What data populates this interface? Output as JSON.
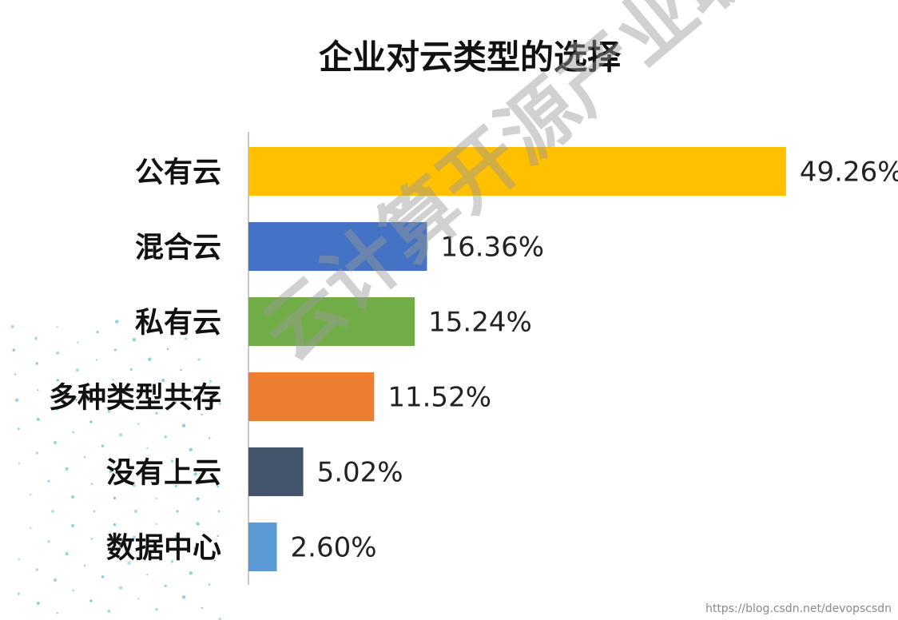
{
  "chart_data": {
    "type": "bar",
    "orientation": "horizontal",
    "title": "企业对云类型的选择",
    "xlabel": "",
    "ylabel": "",
    "xlim": [
      0,
      55
    ],
    "grid": false,
    "legend": "none",
    "categories": [
      "公有云",
      "混合云",
      "私有云",
      "多种类型共存",
      "没有上云",
      "数据中心"
    ],
    "values": [
      49.26,
      16.36,
      15.24,
      11.52,
      5.02,
      2.6
    ],
    "value_labels": [
      "49.26%",
      "16.36%",
      "15.24%",
      "11.52%",
      "5.02%",
      "2.60%"
    ],
    "colors": [
      "#FFC000",
      "#4472C4",
      "#70AD47",
      "#ED7D31",
      "#44546A",
      "#5B9BD5"
    ]
  },
  "watermark": {
    "text": "云计算开源产业联盟",
    "url": "https://blog.csdn.net/devopscsdn"
  },
  "decor": {
    "dot_color": "#2b9fb0"
  }
}
